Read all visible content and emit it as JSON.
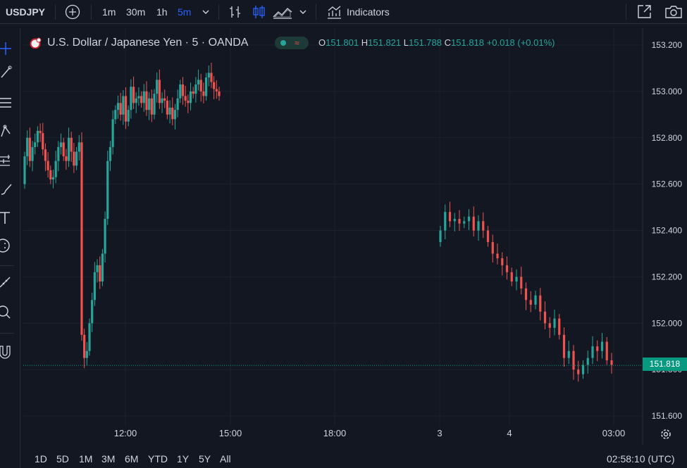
{
  "toolbar": {
    "symbol": "USDJPY",
    "intervals": [
      "1m",
      "30m",
      "1h",
      "5m"
    ],
    "active_interval": "5m",
    "indicators_label": "Indicators",
    "icons": [
      "add-symbol-icon",
      "chevron-down-icon",
      "bar-style-icon",
      "candle-style-icon",
      "area-style-icon",
      "chevron-down-icon",
      "indicators-icon",
      "popout-icon",
      "camera-icon"
    ]
  },
  "left_tools": [
    "cursor-icon",
    "trendline-icon",
    "fib-icon",
    "pattern-icon",
    "forecast-icon",
    "brush-icon",
    "text-icon",
    "emoji-icon",
    "ruler-icon",
    "zoom-icon",
    "magnet-icon"
  ],
  "legend": {
    "title": "U.S. Dollar / Japanese Yen · 5 · OANDA",
    "o_label": "O",
    "o_value": "151.801",
    "h_label": "H",
    "h_value": "151.821",
    "l_label": "L",
    "l_value": "151.788",
    "c_label": "C",
    "c_value": "151.818",
    "change": "+0.018 (+0.01%)"
  },
  "price_axis": {
    "ticks": [
      "153.200",
      "153.000",
      "152.800",
      "152.600",
      "152.400",
      "152.200",
      "152.000",
      "151.800",
      "151.600"
    ],
    "current_price": "151.818"
  },
  "time_axis": {
    "ticks": [
      "12:00",
      "15:00",
      "18:00",
      "3",
      "4",
      "03:00"
    ]
  },
  "bottom": {
    "ranges": [
      "1D",
      "5D",
      "1M",
      "3M",
      "6M",
      "YTD",
      "1Y",
      "5Y",
      "All"
    ],
    "clock": "02:58:10 (UTC)"
  },
  "colors": {
    "up": "#26a69a",
    "down": "#ef5350",
    "background": "#131722",
    "grid": "#1e222d",
    "price_tag": "#089981",
    "accent": "#2962ff"
  },
  "chart_data": {
    "type": "candlestick",
    "y_range": [
      151.52,
      153.28
    ],
    "segments": [
      {
        "from": 152.6,
        "points": [
          152.72,
          152.8,
          152.7,
          152.76,
          152.78,
          152.83,
          152.82,
          152.75,
          152.7,
          152.66,
          152.62,
          152.63,
          152.7,
          152.76,
          152.78,
          152.72,
          152.7,
          152.8,
          152.74,
          152.68,
          152.74,
          152.78,
          151.95,
          151.85,
          151.88,
          152.0,
          152.1,
          152.22,
          152.25,
          152.18,
          152.3,
          152.45,
          152.7,
          152.76,
          152.88,
          152.92,
          152.95,
          152.9,
          152.98,
          152.87,
          152.92,
          153.02,
          152.95,
          152.97,
          152.98,
          152.95,
          153.0,
          152.92,
          152.97,
          152.9,
          152.99,
          153.05,
          152.95,
          152.97,
          152.96,
          152.9,
          152.93,
          152.88,
          152.92,
          152.97,
          153.03,
          152.98,
          152.96,
          152.95,
          153.0,
          152.99,
          153.03,
          153.05,
          153.0,
          152.98,
          153.06,
          153.08,
          153.04,
          153.01,
          153.0,
          152.98
        ]
      },
      {
        "from": 152.35,
        "points": [
          152.4,
          152.48,
          152.44,
          152.45,
          152.43,
          152.44,
          152.46,
          152.4,
          152.44,
          152.4,
          152.35,
          152.3,
          152.28,
          152.25,
          152.22,
          152.18,
          152.2,
          152.15,
          152.1,
          152.08,
          152.12,
          152.05,
          152.0,
          151.98,
          152.02,
          151.95,
          151.85,
          151.88,
          151.8,
          151.78,
          151.82,
          151.85,
          151.9,
          151.88,
          151.92,
          151.84,
          151.82
        ]
      }
    ],
    "x_labels": [
      "12:00",
      "15:00",
      "18:00",
      "3",
      "4",
      "03:00"
    ],
    "last": 151.818
  }
}
